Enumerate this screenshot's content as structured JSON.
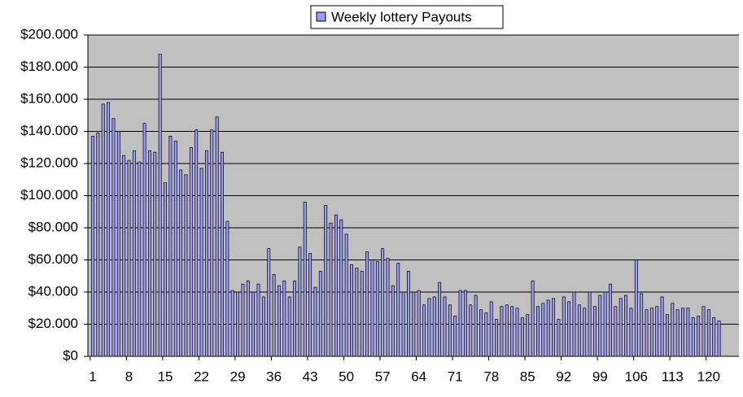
{
  "chart_data": {
    "type": "bar",
    "series": [
      {
        "name": "Weekly lottery Payouts",
        "color": "#9999ff",
        "values": [
          137000,
          139000,
          157000,
          158000,
          148000,
          140000,
          125000,
          122000,
          128000,
          121000,
          145000,
          128000,
          127000,
          188000,
          108000,
          137000,
          134000,
          116000,
          113000,
          130000,
          141000,
          117000,
          128000,
          141000,
          149000,
          127000,
          84000,
          41000,
          40000,
          45000,
          47000,
          40000,
          45000,
          37000,
          67000,
          51000,
          44000,
          47000,
          37000,
          47000,
          68000,
          96000,
          64000,
          43000,
          53000,
          94000,
          83000,
          88000,
          85000,
          76000,
          57000,
          55000,
          53000,
          65000,
          60000,
          59000,
          67000,
          61000,
          44000,
          58000,
          40000,
          53000,
          40000,
          41000,
          32000,
          36000,
          37000,
          46000,
          37000,
          32000,
          25000,
          41000,
          41000,
          32000,
          38000,
          29000,
          27000,
          34000,
          23000,
          31000,
          32000,
          31000,
          30000,
          24000,
          26000,
          47000,
          31000,
          33000,
          35000,
          36000,
          23000,
          37000,
          34000,
          40000,
          32000,
          30000,
          40000,
          31000,
          38000,
          40000,
          45000,
          31000,
          36000,
          38000,
          30000,
          60000,
          39000,
          29000,
          30000,
          31000,
          37000,
          26000,
          33000,
          29000,
          30000,
          30000,
          24000,
          25000,
          31000,
          29000,
          24000,
          22000
        ]
      }
    ],
    "categories": [
      "1",
      null,
      null,
      null,
      null,
      null,
      null,
      "8",
      null,
      null,
      null,
      null,
      null,
      null,
      "15",
      null,
      null,
      null,
      null,
      null,
      null,
      "22",
      null,
      null,
      null,
      null,
      null,
      null,
      "29",
      null,
      null,
      null,
      null,
      null,
      null,
      "36",
      null,
      null,
      null,
      null,
      null,
      null,
      "43",
      null,
      null,
      null,
      null,
      null,
      null,
      "50",
      null,
      null,
      null,
      null,
      null,
      null,
      "57",
      null,
      null,
      null,
      null,
      null,
      null,
      "64",
      null,
      null,
      null,
      null,
      null,
      null,
      "71",
      null,
      null,
      null,
      null,
      null,
      null,
      "78",
      null,
      null,
      null,
      null,
      null,
      null,
      "85",
      null,
      null,
      null,
      null,
      null,
      null,
      "92",
      null,
      null,
      null,
      null,
      null,
      null,
      "99",
      null,
      null,
      null,
      null,
      null,
      null,
      "106",
      null,
      null,
      null,
      null,
      null,
      null,
      "113",
      null,
      null,
      null,
      null,
      null,
      null,
      "120",
      null,
      null
    ],
    "ylim": [
      0,
      200000
    ],
    "yticks": [
      {
        "value": 0,
        "label": "$0"
      },
      {
        "value": 20000,
        "label": "$20.000"
      },
      {
        "value": 40000,
        "label": "$40.000"
      },
      {
        "value": 60000,
        "label": "$60.000"
      },
      {
        "value": 80000,
        "label": "$80.000"
      },
      {
        "value": 100000,
        "label": "$100.000"
      },
      {
        "value": 120000,
        "label": "$120.000"
      },
      {
        "value": 140000,
        "label": "$140.000"
      },
      {
        "value": 160000,
        "label": "$160.000"
      },
      {
        "value": 180000,
        "label": "$180.000"
      },
      {
        "value": 200000,
        "label": "$200.000"
      }
    ],
    "grid": true,
    "legend": "top"
  }
}
